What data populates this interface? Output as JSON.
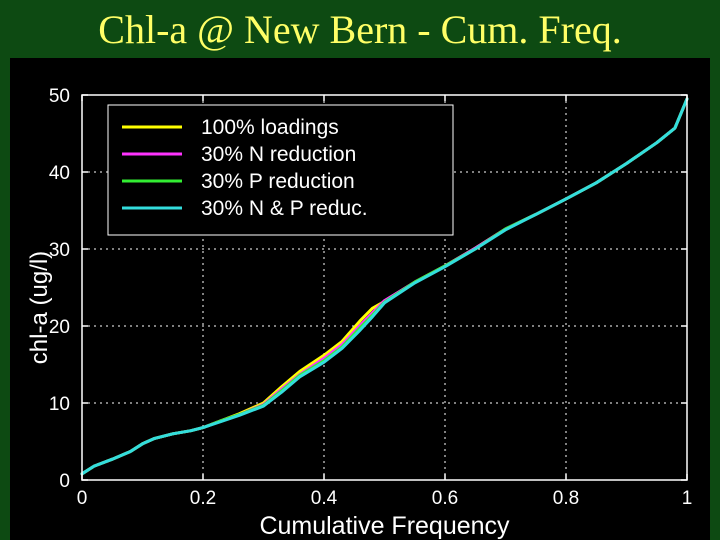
{
  "slide": {
    "title": "Chl-a @ New Bern - Cum. Freq."
  },
  "colors": {
    "background": "#0d4a12",
    "title": "#ffff66",
    "plot_background": "#000000",
    "axes": "#ffffff"
  },
  "chart_data": {
    "type": "line",
    "title": "",
    "xlabel": "Cumulative Frequency",
    "ylabel": "chl-a (ug/l)",
    "xlim": [
      0,
      1
    ],
    "ylim": [
      0,
      50
    ],
    "xticks": [
      0,
      0.2,
      0.4,
      0.6,
      0.8,
      1
    ],
    "xtick_labels": [
      "0",
      "0.2",
      "0.4",
      "0.6",
      "0.8",
      "1"
    ],
    "yticks": [
      0,
      10,
      20,
      30,
      40,
      50
    ],
    "ytick_labels": [
      "0",
      "10",
      "20",
      "30",
      "40",
      "50"
    ],
    "grid": true,
    "legend_position": "top-left",
    "series": [
      {
        "name": "100% loadings",
        "color": "#ffff00",
        "x": [
          0,
          0.02,
          0.05,
          0.08,
          0.1,
          0.12,
          0.15,
          0.18,
          0.2,
          0.23,
          0.26,
          0.3,
          0.33,
          0.36,
          0.4,
          0.43,
          0.46,
          0.48,
          0.5,
          0.55,
          0.6,
          0.65,
          0.7,
          0.75,
          0.8,
          0.85,
          0.9,
          0.95,
          0.98,
          1.0
        ],
        "y": [
          0.8,
          1.8,
          2.7,
          3.7,
          4.7,
          5.4,
          6.0,
          6.4,
          6.8,
          7.7,
          8.6,
          10.0,
          12.1,
          14.1,
          16.2,
          18.0,
          20.7,
          22.3,
          23.2,
          25.7,
          27.8,
          30.1,
          32.6,
          34.5,
          36.5,
          38.6,
          41.1,
          43.8,
          45.7,
          49.5
        ]
      },
      {
        "name": "30% N reduction",
        "color": "#ff33ff",
        "x": [
          0,
          0.02,
          0.05,
          0.08,
          0.1,
          0.12,
          0.15,
          0.18,
          0.2,
          0.23,
          0.26,
          0.3,
          0.33,
          0.36,
          0.4,
          0.43,
          0.46,
          0.48,
          0.5,
          0.55,
          0.6,
          0.65,
          0.7,
          0.75,
          0.8,
          0.85,
          0.9,
          0.95,
          0.98,
          1.0
        ],
        "y": [
          0.8,
          1.8,
          2.7,
          3.7,
          4.7,
          5.4,
          6.0,
          6.4,
          6.8,
          7.7,
          8.5,
          9.8,
          11.8,
          13.7,
          15.8,
          17.6,
          20.1,
          21.7,
          23.3,
          25.7,
          27.8,
          30.1,
          32.6,
          34.5,
          36.5,
          38.6,
          41.1,
          43.8,
          45.7,
          49.5
        ]
      },
      {
        "name": "30% P reduction",
        "color": "#33ee33",
        "x": [
          0,
          0.02,
          0.05,
          0.08,
          0.1,
          0.12,
          0.15,
          0.18,
          0.2,
          0.23,
          0.26,
          0.3,
          0.33,
          0.36,
          0.4,
          0.43,
          0.46,
          0.48,
          0.5,
          0.55,
          0.6,
          0.65,
          0.7,
          0.75,
          0.8,
          0.85,
          0.9,
          0.95,
          0.98,
          1.0
        ],
        "y": [
          0.8,
          1.8,
          2.7,
          3.7,
          4.7,
          5.4,
          6.0,
          6.4,
          6.8,
          7.7,
          8.5,
          9.7,
          11.6,
          13.6,
          15.5,
          17.3,
          19.8,
          21.4,
          23.1,
          25.7,
          27.8,
          30.0,
          32.6,
          34.5,
          36.5,
          38.6,
          41.1,
          43.8,
          45.7,
          49.5
        ]
      },
      {
        "name": "30% N & P reduc.",
        "color": "#33dddd",
        "x": [
          0,
          0.02,
          0.05,
          0.08,
          0.1,
          0.12,
          0.15,
          0.18,
          0.2,
          0.23,
          0.26,
          0.3,
          0.33,
          0.36,
          0.4,
          0.43,
          0.46,
          0.48,
          0.5,
          0.55,
          0.6,
          0.65,
          0.7,
          0.75,
          0.8,
          0.85,
          0.9,
          0.95,
          0.98,
          1.0
        ],
        "y": [
          0.8,
          1.8,
          2.7,
          3.7,
          4.7,
          5.4,
          6.0,
          6.4,
          6.8,
          7.6,
          8.4,
          9.6,
          11.4,
          13.4,
          15.3,
          17.1,
          19.5,
          21.2,
          23.0,
          25.6,
          27.7,
          30.0,
          32.5,
          34.5,
          36.5,
          38.6,
          41.1,
          43.8,
          45.7,
          49.5
        ]
      }
    ]
  }
}
